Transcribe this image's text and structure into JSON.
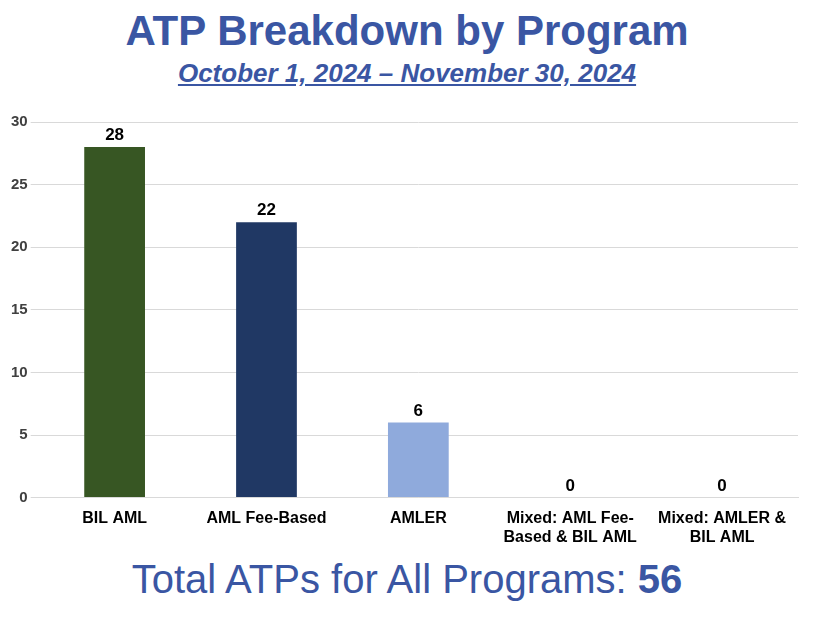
{
  "chart_data": {
    "type": "bar",
    "title": "ATP Breakdown by Program",
    "subtitle": "October 1, 2024 – November 30, 2024",
    "categories": [
      "BIL AML",
      "AML Fee-Based",
      "AMLER",
      "Mixed: AML Fee-Based & BIL AML",
      "Mixed: AMLER & BIL AML"
    ],
    "values": [
      28,
      22,
      6,
      0,
      0
    ],
    "colors": [
      "#375623",
      "#203864",
      "#8FAADC",
      "#4472C4",
      "#4472C4"
    ],
    "ylim": [
      0,
      30
    ],
    "yticks": [
      0,
      5,
      10,
      15,
      20,
      25,
      30
    ],
    "grid": true,
    "data_labels": true,
    "total_label": "Total ATPs for All Programs:",
    "total": 56
  }
}
